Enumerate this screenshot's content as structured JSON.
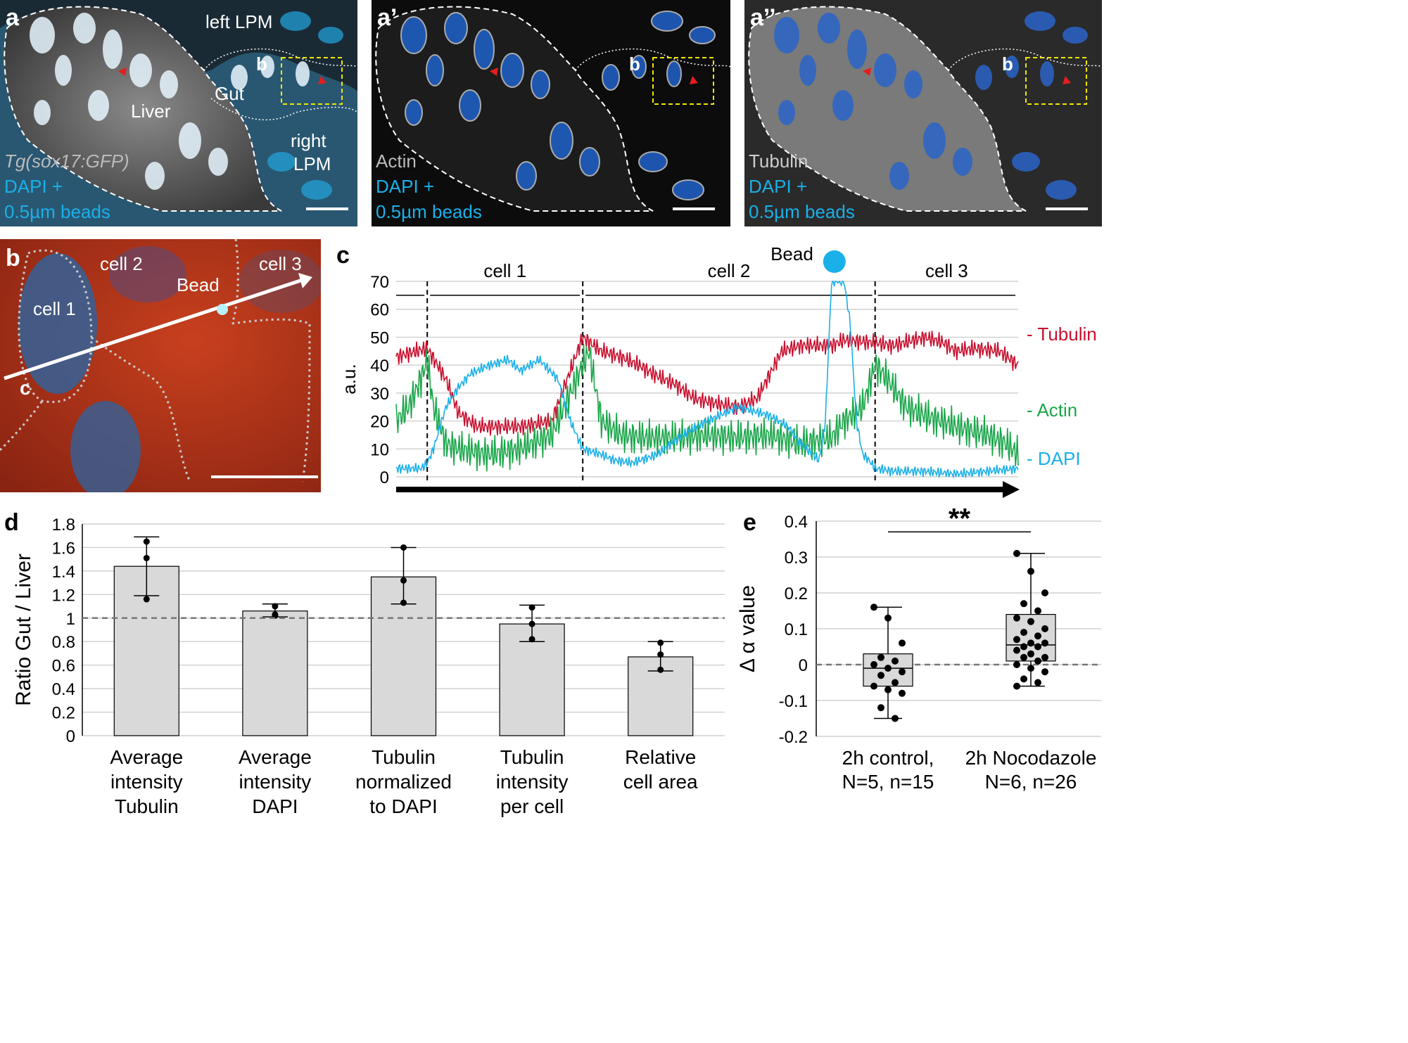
{
  "panel_a": {
    "label": "a",
    "region_labels": [
      "left LPM",
      "Gut",
      "Liver",
      "right",
      "LPM"
    ],
    "inset_label": "b",
    "stain_labels": [
      "Tg(sox17:GFP)",
      "DAPI +",
      "0.5µm beads"
    ]
  },
  "panel_a1": {
    "label": "a’",
    "inset_label": "b",
    "stain_labels": [
      "Actin",
      "DAPI +",
      "0.5µm beads"
    ]
  },
  "panel_a2": {
    "label": "a’’",
    "inset_label": "b",
    "stain_labels": [
      "Tubulin",
      "DAPI +",
      "0.5µm beads"
    ]
  },
  "panel_b": {
    "label": "b",
    "cell_labels": [
      "cell 1",
      "cell 2",
      "cell 3"
    ],
    "bead_label": "Bead",
    "line_start_label": "c"
  },
  "colors": {
    "tubulin": "#c8102e",
    "actin": "#1aa64a",
    "dapi": "#1ab0e8",
    "bar": "#d9d9d9",
    "bead": "#1ab0e8"
  },
  "chart_data": [
    {
      "panel": "c",
      "type": "line",
      "ylabel": "a.u.",
      "ylim": [
        0,
        70
      ],
      "yticks": [
        0,
        10,
        20,
        30,
        40,
        50,
        60,
        70
      ],
      "x_range": [
        0,
        100
      ],
      "regions": [
        {
          "name": "cell 1",
          "x_start": 5,
          "x_end": 30
        },
        {
          "name": "cell 2",
          "x_start": 30,
          "x_end": 77
        },
        {
          "name": "cell 3",
          "x_start": 77,
          "x_end": 100
        }
      ],
      "bead_label": "Bead",
      "bead_x": 70,
      "series": [
        {
          "name": "- Tubulin",
          "color": "#c8102e",
          "x": [
            0,
            5,
            8,
            10,
            13,
            15,
            20,
            25,
            28,
            30,
            33,
            36,
            39,
            42,
            45,
            48,
            52,
            55,
            58,
            62,
            65,
            70,
            72,
            77,
            80,
            85,
            88,
            90,
            93,
            97,
            100
          ],
          "y": [
            43,
            46,
            35,
            23,
            18,
            18,
            18,
            20,
            38,
            50,
            45,
            43,
            40,
            36,
            33,
            28,
            26,
            25,
            28,
            45,
            47,
            47,
            49,
            48,
            47,
            50,
            48,
            45,
            46,
            45,
            40
          ]
        },
        {
          "name": "- Actin",
          "color": "#1aa64a",
          "x": [
            0,
            2,
            4,
            5,
            6,
            8,
            10,
            15,
            20,
            25,
            30,
            31,
            33,
            36,
            40,
            45,
            50,
            55,
            60,
            65,
            70,
            72,
            75,
            77,
            79,
            82,
            85,
            90,
            95,
            98,
            100
          ],
          "y": [
            20,
            25,
            35,
            42,
            25,
            12,
            10,
            8,
            10,
            15,
            40,
            45,
            20,
            15,
            14,
            14,
            15,
            14,
            15,
            12,
            14,
            20,
            25,
            40,
            35,
            25,
            22,
            18,
            15,
            12,
            8
          ]
        },
        {
          "name": "- DAPI",
          "color": "#1ab0e8",
          "x": [
            0,
            4,
            5,
            6,
            8,
            10,
            12,
            15,
            18,
            20,
            23,
            26,
            28,
            30,
            33,
            35,
            38,
            42,
            46,
            50,
            55,
            60,
            63,
            65,
            68,
            69,
            70,
            72,
            73,
            74,
            75,
            76,
            77,
            80,
            85,
            90,
            95,
            100
          ],
          "y": [
            3,
            3,
            5,
            10,
            25,
            32,
            37,
            40,
            42,
            38,
            42,
            35,
            20,
            10,
            8,
            6,
            5,
            8,
            15,
            20,
            25,
            22,
            18,
            12,
            6,
            20,
            70,
            70,
            55,
            20,
            8,
            6,
            3,
            2,
            2,
            1,
            2,
            3
          ]
        }
      ]
    },
    {
      "panel": "d",
      "type": "bar",
      "ylabel": "Ratio Gut / Liver",
      "ylim": [
        0,
        1.8
      ],
      "yticks": [
        "0",
        "0.2",
        "0.4",
        "0.6",
        "0.8",
        "1",
        "1.2",
        "1.4",
        "1.6",
        "1.8"
      ],
      "reference_line": 1,
      "categories": [
        [
          "Average",
          "intensity",
          "Tubulin"
        ],
        [
          "Average",
          "intensity",
          "DAPI"
        ],
        [
          "Tubulin",
          "normalized",
          "to DAPI"
        ],
        [
          "Tubulin",
          "intensity",
          "per cell"
        ],
        [
          "Relative",
          "cell area"
        ]
      ],
      "values": [
        1.44,
        1.06,
        1.35,
        0.95,
        0.67
      ],
      "error_low": [
        1.19,
        1.01,
        1.12,
        0.8,
        0.55
      ],
      "error_high": [
        1.69,
        1.12,
        1.6,
        1.11,
        0.8
      ],
      "points": [
        [
          1.65,
          1.51,
          1.16
        ],
        [
          1.1,
          1.03,
          1.02
        ],
        [
          1.6,
          1.32,
          1.13
        ],
        [
          1.09,
          0.95,
          0.82
        ],
        [
          0.79,
          0.69,
          0.56
        ]
      ]
    },
    {
      "panel": "e",
      "type": "box",
      "ylabel": "Δ α value",
      "ylim": [
        -0.2,
        0.4
      ],
      "yticks": [
        "-0.2",
        "-0.1",
        "0",
        "0.1",
        "0.2",
        "0.3",
        "0.4"
      ],
      "reference_line": 0,
      "categories": [
        [
          "2h control,",
          "N=5, n=15"
        ],
        [
          "2h Nocodazole",
          "N=6, n=26"
        ]
      ],
      "boxes": [
        {
          "min": -0.15,
          "q1": -0.06,
          "median": -0.01,
          "q3": 0.03,
          "max": 0.16,
          "points": [
            0.16,
            0.13,
            0.06,
            0.02,
            0.01,
            0.0,
            -0.01,
            -0.02,
            -0.03,
            -0.05,
            -0.06,
            -0.07,
            -0.08,
            -0.12,
            -0.15
          ]
        },
        {
          "min": -0.06,
          "q1": 0.01,
          "median": 0.055,
          "q3": 0.14,
          "max": 0.31,
          "points": [
            0.31,
            0.26,
            0.2,
            0.17,
            0.15,
            0.13,
            0.12,
            0.1,
            0.09,
            0.08,
            0.07,
            0.06,
            0.06,
            0.05,
            0.05,
            0.04,
            0.03,
            0.02,
            0.02,
            0.01,
            0.0,
            -0.01,
            -0.02,
            -0.04,
            -0.05,
            -0.06
          ]
        }
      ],
      "significance": "**"
    }
  ]
}
